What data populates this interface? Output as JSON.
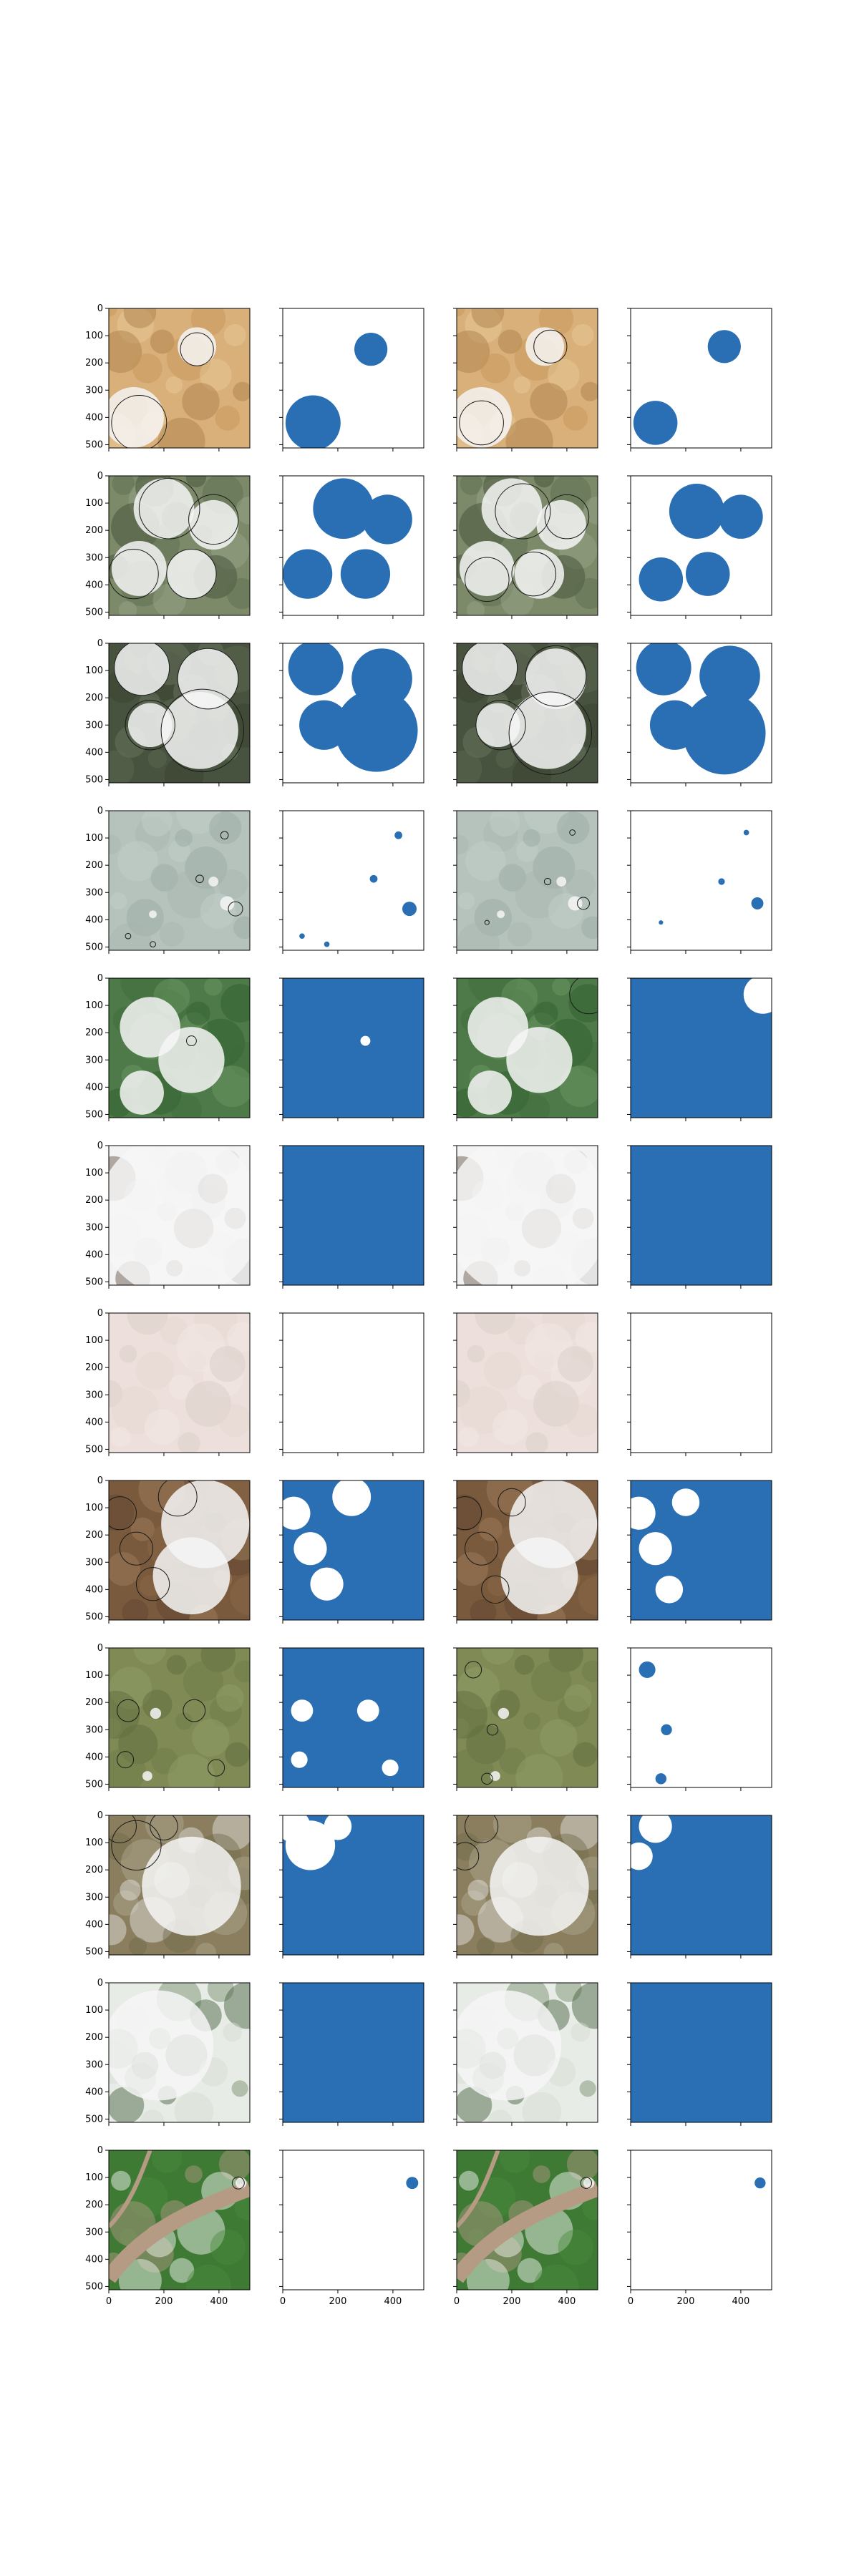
{
  "colors": {
    "mask_blue": "#2a6fb4",
    "background": "#ffffff",
    "frame": "#000000",
    "contour": "#1a1a1a"
  },
  "chart_data": {
    "type": "image-grid",
    "grid": {
      "rows": 12,
      "cols": 4,
      "axes_grid": true
    },
    "axis_ranges": {
      "x": [
        0,
        512
      ],
      "y": [
        512,
        0
      ]
    },
    "x_ticks": [
      0,
      200,
      400
    ],
    "y_ticks": [
      0,
      100,
      200,
      300,
      400,
      500
    ],
    "x_tick_labels": [
      "0",
      "200",
      "400"
    ],
    "y_tick_labels": [
      "0",
      "100",
      "200",
      "300",
      "400",
      "500"
    ],
    "columns": [
      {
        "kind": "image-with-contour"
      },
      {
        "kind": "mask"
      },
      {
        "kind": "image-with-contour"
      },
      {
        "kind": "mask"
      }
    ],
    "rows": [
      {
        "scene": "desert",
        "palette": [
          "#d9b07a",
          "#c49455",
          "#e8cc9c",
          "#a87d47"
        ],
        "clouds": [
          [
            320,
            140,
            70
          ],
          [
            90,
            400,
            110
          ]
        ],
        "mask_a": [
          [
            320,
            150,
            60
          ],
          [
            110,
            420,
            100
          ]
        ],
        "mask_b": [
          [
            340,
            140,
            60
          ],
          [
            90,
            420,
            80
          ]
        ],
        "inverted_a": false,
        "inverted_b": false
      },
      {
        "scene": "forest-clouds",
        "palette": [
          "#7c8a6a",
          "#5c6b4c",
          "#9aa58a",
          "#3f4a34"
        ],
        "clouds": [
          [
            200,
            120,
            110
          ],
          [
            380,
            180,
            90
          ],
          [
            110,
            340,
            100
          ],
          [
            300,
            360,
            90
          ]
        ],
        "mask_a": [
          [
            220,
            120,
            110
          ],
          [
            380,
            160,
            90
          ],
          [
            90,
            360,
            90
          ],
          [
            300,
            360,
            90
          ]
        ],
        "mask_b": [
          [
            240,
            130,
            100
          ],
          [
            400,
            150,
            80
          ],
          [
            110,
            380,
            80
          ],
          [
            280,
            360,
            80
          ]
        ],
        "inverted_a": false,
        "inverted_b": false
      },
      {
        "scene": "dark-clouds",
        "palette": [
          "#47523f",
          "#5f6a55",
          "#38412f",
          "#6f7a63"
        ],
        "clouds": [
          [
            120,
            90,
            100
          ],
          [
            360,
            130,
            110
          ],
          [
            330,
            320,
            140
          ],
          [
            150,
            300,
            80
          ]
        ],
        "mask_a": [
          [
            120,
            90,
            100
          ],
          [
            360,
            130,
            110
          ],
          [
            340,
            320,
            150
          ],
          [
            150,
            300,
            90
          ]
        ],
        "mask_b": [
          [
            120,
            90,
            100
          ],
          [
            360,
            120,
            110
          ],
          [
            340,
            330,
            150
          ],
          [
            160,
            300,
            90
          ]
        ],
        "inverted_a": false,
        "inverted_b": false
      },
      {
        "scene": "snow",
        "palette": [
          "#b6c3bd",
          "#a8b6af",
          "#c4d0ca",
          "#9aa8a1"
        ],
        "clouds": [
          [
            430,
            340,
            26
          ],
          [
            380,
            260,
            18
          ],
          [
            160,
            380,
            14
          ]
        ],
        "mask_a": [
          [
            460,
            360,
            26
          ],
          [
            420,
            90,
            14
          ],
          [
            330,
            250,
            14
          ],
          [
            70,
            460,
            10
          ],
          [
            160,
            490,
            10
          ]
        ],
        "mask_b": [
          [
            460,
            340,
            22
          ],
          [
            420,
            80,
            10
          ],
          [
            330,
            260,
            12
          ],
          [
            110,
            410,
            8
          ]
        ],
        "inverted_a": false,
        "inverted_b": false
      },
      {
        "scene": "green-clouds",
        "palette": [
          "#4d7a48",
          "#3d6a3a",
          "#6f9a68",
          "#2f5a2c"
        ],
        "clouds": [
          [
            150,
            180,
            110
          ],
          [
            300,
            300,
            120
          ],
          [
            120,
            420,
            80
          ]
        ],
        "mask_a": [
          [
            300,
            230,
            18
          ]
        ],
        "mask_b": [
          [
            480,
            60,
            70
          ]
        ],
        "inverted_a": true,
        "inverted_b": true
      },
      {
        "scene": "white-clouds",
        "palette": [
          "#f3f3f3",
          "#e6e6e6",
          "#d0d0d0",
          "#5a4b40"
        ],
        "clouds": [
          [
            256,
            256,
            300
          ]
        ],
        "mask_a": [],
        "mask_b": [],
        "inverted_a": true,
        "inverted_b": true
      },
      {
        "scene": "pink-haze",
        "palette": [
          "#ede0dc",
          "#e5d6d1",
          "#f2e8e4",
          "#d8cdc6"
        ],
        "clouds": [],
        "mask_a": [],
        "mask_b": [],
        "inverted_a": false,
        "inverted_b": false
      },
      {
        "scene": "brown-clouds",
        "palette": [
          "#7a5a3c",
          "#8b6a4a",
          "#5e4430",
          "#a08060"
        ],
        "clouds": [
          [
            350,
            160,
            160
          ],
          [
            300,
            350,
            140
          ]
        ],
        "mask_a": [
          [
            40,
            120,
            60
          ],
          [
            100,
            250,
            60
          ],
          [
            250,
            60,
            70
          ],
          [
            160,
            380,
            60
          ]
        ],
        "mask_b": [
          [
            30,
            120,
            60
          ],
          [
            90,
            250,
            60
          ],
          [
            200,
            80,
            50
          ],
          [
            140,
            400,
            50
          ]
        ],
        "inverted_a": true,
        "inverted_b": true
      },
      {
        "scene": "agri",
        "palette": [
          "#7f8a55",
          "#6f7a48",
          "#95a068",
          "#5e6a3c"
        ],
        "clouds": [
          [
            170,
            240,
            20
          ],
          [
            140,
            470,
            18
          ]
        ],
        "mask_a": [
          [
            70,
            230,
            40
          ],
          [
            310,
            230,
            40
          ],
          [
            390,
            440,
            30
          ],
          [
            60,
            410,
            30
          ]
        ],
        "mask_b": [
          [
            60,
            80,
            30
          ],
          [
            130,
            300,
            20
          ],
          [
            110,
            480,
            20
          ]
        ],
        "inverted_a": true,
        "inverted_b": false
      },
      {
        "scene": "mixed-clouds",
        "palette": [
          "#8a7e5e",
          "#6f6a4c",
          "#b0aa94",
          "#e8e8e8"
        ],
        "clouds": [
          [
            300,
            260,
            180
          ]
        ],
        "mask_a": [
          [
            100,
            110,
            90
          ],
          [
            40,
            40,
            60
          ],
          [
            200,
            40,
            50
          ]
        ],
        "mask_b": [
          [
            90,
            40,
            60
          ],
          [
            30,
            150,
            50
          ]
        ],
        "inverted_a": true,
        "inverted_b": true
      },
      {
        "scene": "forest-white",
        "palette": [
          "#e8ece6",
          "#d4dbd2",
          "#6e8a66",
          "#3e5a38"
        ],
        "clouds": [
          [
            180,
            230,
            200
          ]
        ],
        "mask_a": [],
        "mask_b": [],
        "inverted_a": true,
        "inverted_b": true
      },
      {
        "scene": "river",
        "palette": [
          "#3f7a35",
          "#4a8a3f",
          "#b59a84",
          "#ffffff"
        ],
        "clouds": [
          [
            480,
            120,
            20
          ]
        ],
        "mask_a": [
          [
            470,
            120,
            22
          ]
        ],
        "mask_b": [
          [
            470,
            120,
            20
          ]
        ],
        "inverted_a": false,
        "inverted_b": false
      }
    ]
  }
}
